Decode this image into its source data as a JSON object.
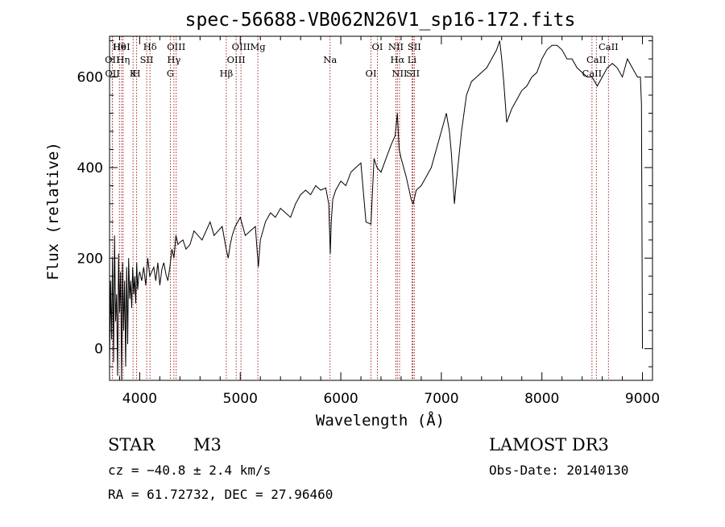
{
  "chart_data": {
    "type": "line",
    "title": "spec-56688-VB062N26V1_sp16-172.fits",
    "xlabel": "Wavelength (Å)",
    "ylabel": "Flux (relative)",
    "xlim": [
      3700,
      9100
    ],
    "ylim": [
      -70,
      690
    ],
    "x_ticks": [
      4000,
      5000,
      6000,
      7000,
      8000,
      9000
    ],
    "y_ticks": [
      0,
      200,
      400,
      600
    ],
    "series": [
      {
        "name": "flux",
        "x": [
          3700,
          3710,
          3720,
          3730,
          3740,
          3750,
          3760,
          3770,
          3780,
          3790,
          3800,
          3810,
          3820,
          3830,
          3840,
          3850,
          3860,
          3870,
          3880,
          3890,
          3900,
          3910,
          3920,
          3930,
          3940,
          3950,
          3960,
          3970,
          3980,
          3990,
          4000,
          4020,
          4040,
          4060,
          4080,
          4100,
          4120,
          4140,
          4160,
          4180,
          4200,
          4220,
          4240,
          4260,
          4280,
          4300,
          4320,
          4340,
          4360,
          4380,
          4400,
          4430,
          4460,
          4500,
          4540,
          4580,
          4620,
          4660,
          4700,
          4740,
          4780,
          4820,
          4860,
          4880,
          4900,
          4920,
          4950,
          5000,
          5050,
          5100,
          5150,
          5180,
          5200,
          5250,
          5300,
          5350,
          5400,
          5450,
          5500,
          5550,
          5600,
          5650,
          5700,
          5750,
          5800,
          5850,
          5880,
          5895,
          5905,
          5920,
          5950,
          6000,
          6050,
          6100,
          6150,
          6200,
          6250,
          6300,
          6330,
          6360,
          6400,
          6450,
          6500,
          6540,
          6563,
          6580,
          6600,
          6650,
          6700,
          6720,
          6750,
          6800,
          6850,
          6900,
          6950,
          7000,
          7050,
          7080,
          7100,
          7130,
          7150,
          7200,
          7250,
          7300,
          7350,
          7400,
          7450,
          7500,
          7550,
          7580,
          7600,
          7620,
          7650,
          7700,
          7750,
          7800,
          7850,
          7900,
          7950,
          8000,
          8050,
          8100,
          8150,
          8200,
          8250,
          8300,
          8350,
          8400,
          8450,
          8500,
          8550,
          8600,
          8650,
          8700,
          8750,
          8800,
          8850,
          8900,
          8950,
          8980,
          8990,
          9000
        ],
        "y": [
          -40,
          150,
          20,
          200,
          -30,
          250,
          60,
          120,
          -60,
          210,
          80,
          170,
          -70,
          190,
          40,
          150,
          -40,
          180,
          10,
          200,
          110,
          150,
          90,
          180,
          120,
          160,
          100,
          190,
          130,
          160,
          170,
          150,
          180,
          140,
          200,
          160,
          170,
          180,
          150,
          190,
          140,
          175,
          190,
          165,
          150,
          180,
          220,
          200,
          250,
          230,
          235,
          240,
          220,
          230,
          260,
          250,
          240,
          260,
          280,
          250,
          260,
          270,
          220,
          200,
          230,
          250,
          270,
          290,
          250,
          260,
          270,
          180,
          240,
          280,
          300,
          290,
          310,
          300,
          290,
          320,
          340,
          350,
          340,
          360,
          350,
          355,
          320,
          210,
          280,
          330,
          350,
          370,
          360,
          390,
          400,
          410,
          280,
          275,
          420,
          400,
          390,
          420,
          450,
          470,
          520,
          440,
          420,
          380,
          330,
          320,
          350,
          360,
          380,
          400,
          440,
          480,
          520,
          480,
          430,
          320,
          370,
          480,
          560,
          590,
          600,
          610,
          620,
          640,
          660,
          680,
          640,
          590,
          500,
          530,
          550,
          570,
          580,
          600,
          610,
          640,
          660,
          670,
          670,
          660,
          640,
          640,
          620,
          610,
          600,
          600,
          580,
          600,
          620,
          630,
          620,
          600,
          640,
          620,
          600,
          600,
          540,
          0
        ]
      }
    ],
    "lines": [
      {
        "label": "Hθ",
        "x": 3798
      },
      {
        "label": "OII",
        "x": 3727
      },
      {
        "label": "OII",
        "x": 3729
      },
      {
        "label": "HeI",
        "x": 3820
      },
      {
        "label": "Hη",
        "x": 3835
      },
      {
        "label": "K",
        "x": 3934
      },
      {
        "label": "Hδ",
        "x": 4102
      },
      {
        "label": "SII",
        "x": 4069
      },
      {
        "label": "H",
        "x": 3969
      },
      {
        "label": "OIII",
        "x": 4363
      },
      {
        "label": "Hγ",
        "x": 4340
      },
      {
        "label": "G",
        "x": 4305
      },
      {
        "label": "OIII",
        "x": 5007
      },
      {
        "label": "OIII",
        "x": 4959
      },
      {
        "label": "Hβ",
        "x": 4861
      },
      {
        "label": "Mg",
        "x": 5175
      },
      {
        "label": "Na",
        "x": 5893
      },
      {
        "label": "OI",
        "x": 6300
      },
      {
        "label": "OI",
        "x": 6364
      },
      {
        "label": "Hα",
        "x": 6563
      },
      {
        "label": "SII",
        "x": 6717
      },
      {
        "label": "NII",
        "x": 6548
      },
      {
        "label": "Li",
        "x": 6708
      },
      {
        "label": "NII",
        "x": 6584
      },
      {
        "label": "SII",
        "x": 6731
      },
      {
        "label": "CaII",
        "x": 8542
      },
      {
        "label": "CaII",
        "x": 8498
      },
      {
        "label": "CaII",
        "x": 8662
      }
    ]
  },
  "info": {
    "class": "STAR",
    "subclass": "M3",
    "cz": "cz = −40.8 ± 2.4 km/s",
    "radec": "RA =  61.72732, DEC =  27.96460",
    "survey": "LAMOST DR3",
    "obs_date": "Obs-Date: 20140130"
  },
  "colors": {
    "axis": "#000000",
    "spectrum": "#000000",
    "line_marker": "#a52a2a"
  }
}
